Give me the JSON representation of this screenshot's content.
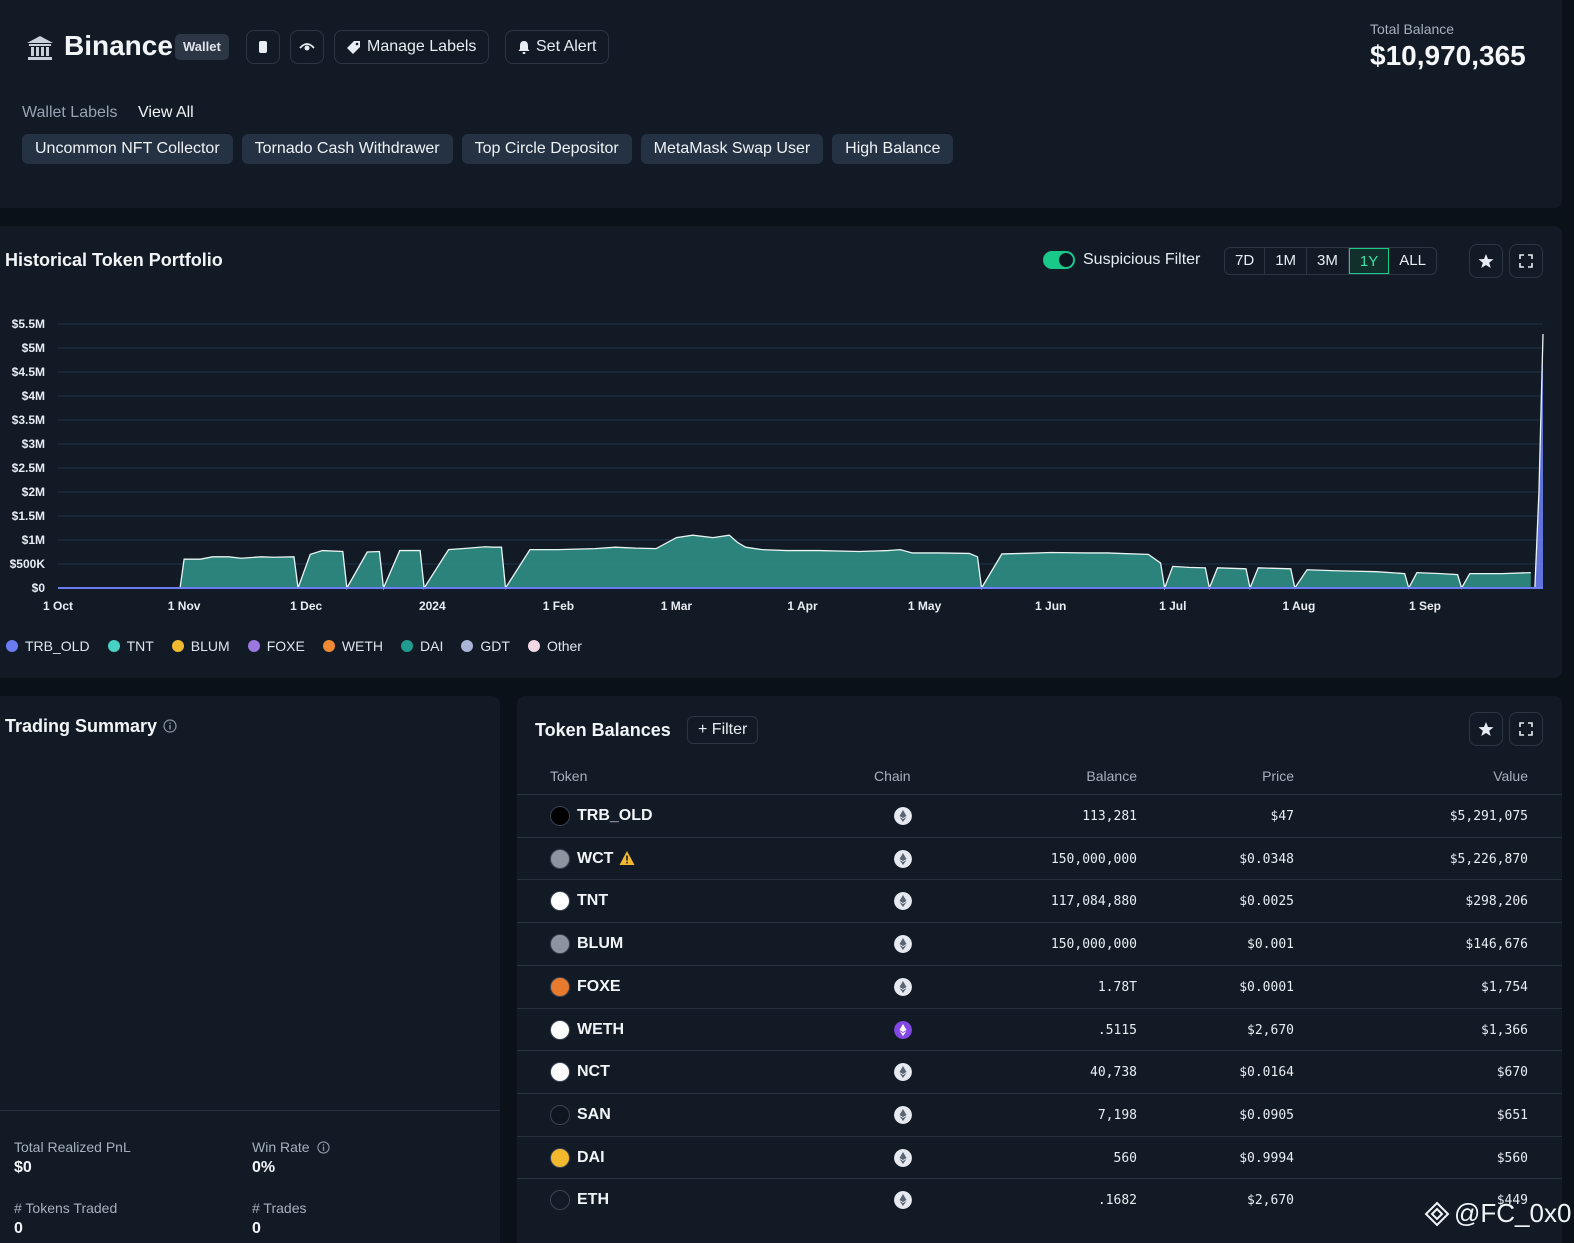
{
  "header": {
    "wallet_name": "Binance",
    "wallet_badge": "Wallet",
    "manage_labels": "Manage Labels",
    "set_alert": "Set Alert",
    "total_balance_label": "Total Balance",
    "total_balance_value": "$10,970,365",
    "wallet_labels_title": "Wallet Labels",
    "view_all": "View All",
    "labels": [
      "Uncommon NFT Collector",
      "Tornado Cash Withdrawer",
      "Top Circle Depositor",
      "MetaMask Swap User",
      "High Balance"
    ]
  },
  "portfolio": {
    "title": "Historical Token Portfolio",
    "suspicious_filter_label": "Suspicious Filter",
    "suspicious_filter_on": true,
    "ranges": [
      "7D",
      "1M",
      "3M",
      "1Y",
      "ALL"
    ],
    "active_range": "1Y",
    "legend": [
      {
        "name": "TRB_OLD",
        "color": "#6b7cf2"
      },
      {
        "name": "TNT",
        "color": "#47d1c2"
      },
      {
        "name": "BLUM",
        "color": "#f2b82e"
      },
      {
        "name": "FOXE",
        "color": "#9a78e0"
      },
      {
        "name": "WETH",
        "color": "#f08a35"
      },
      {
        "name": "DAI",
        "color": "#1f9c8f"
      },
      {
        "name": "GDT",
        "color": "#a9b4d6"
      },
      {
        "name": "Other",
        "color": "#f3d7e4"
      }
    ]
  },
  "chart_data": {
    "type": "area",
    "title": "Historical Token Portfolio",
    "y_ticks": [
      "$5.5M",
      "$5M",
      "$4.5M",
      "$4M",
      "$3.5M",
      "$3M",
      "$2.5M",
      "$2M",
      "$1.5M",
      "$1M",
      "$500K",
      "$0"
    ],
    "ylim": [
      0,
      5500000
    ],
    "x_ticks": [
      "1 Oct",
      "1 Nov",
      "1 Dec",
      "2024",
      "1 Feb",
      "1 Mar",
      "1 Apr",
      "1 May",
      "1 Jun",
      "1 Jul",
      "1 Aug",
      "1 Sep"
    ],
    "grid": true,
    "series": [
      {
        "name": "DAI",
        "color": "#2f8f86",
        "x": [
          "2023-10-01",
          "2023-10-28",
          "2023-10-31",
          "2023-11-01",
          "2023-11-05",
          "2023-11-08",
          "2023-11-12",
          "2023-11-15",
          "2023-11-20",
          "2023-11-23",
          "2023-11-28",
          "2023-11-29",
          "2023-12-02",
          "2023-12-05",
          "2023-12-10",
          "2023-12-11",
          "2023-12-16",
          "2023-12-19",
          "2023-12-20",
          "2023-12-24",
          "2023-12-29",
          "2023-12-30",
          "2024-01-05",
          "2024-01-10",
          "2024-01-14",
          "2024-01-16",
          "2024-01-18",
          "2024-01-19",
          "2024-01-25",
          "2024-02-01",
          "2024-02-10",
          "2024-02-15",
          "2024-02-20",
          "2024-02-25",
          "2024-03-01",
          "2024-03-05",
          "2024-03-10",
          "2024-03-14",
          "2024-03-16",
          "2024-03-18",
          "2024-03-22",
          "2024-03-28",
          "2024-04-05",
          "2024-04-15",
          "2024-04-22",
          "2024-04-25",
          "2024-04-28",
          "2024-05-05",
          "2024-05-12",
          "2024-05-14",
          "2024-05-15",
          "2024-05-20",
          "2024-05-25",
          "2024-06-01",
          "2024-06-10",
          "2024-06-15",
          "2024-06-18",
          "2024-06-25",
          "2024-06-28",
          "2024-06-29",
          "2024-07-01",
          "2024-07-05",
          "2024-07-09",
          "2024-07-10",
          "2024-07-12",
          "2024-07-19",
          "2024-07-20",
          "2024-07-22",
          "2024-07-30",
          "2024-07-31",
          "2024-08-03",
          "2024-08-10",
          "2024-08-20",
          "2024-08-27",
          "2024-08-28",
          "2024-08-30",
          "2024-09-05",
          "2024-09-09",
          "2024-09-10",
          "2024-09-12",
          "2024-09-20",
          "2024-09-27"
        ],
        "y": [
          0,
          0,
          0,
          600000,
          600000,
          650000,
          650000,
          620000,
          650000,
          640000,
          650000,
          0,
          700000,
          780000,
          760000,
          0,
          750000,
          760000,
          0,
          780000,
          780000,
          0,
          800000,
          830000,
          860000,
          850000,
          850000,
          0,
          800000,
          800000,
          820000,
          850000,
          830000,
          820000,
          1050000,
          1100000,
          1050000,
          1100000,
          950000,
          850000,
          800000,
          780000,
          780000,
          760000,
          780000,
          800000,
          730000,
          730000,
          720000,
          650000,
          0,
          710000,
          720000,
          740000,
          730000,
          730000,
          720000,
          700000,
          520000,
          0,
          450000,
          430000,
          420000,
          0,
          420000,
          400000,
          0,
          420000,
          400000,
          0,
          380000,
          360000,
          340000,
          300000,
          0,
          320000,
          300000,
          280000,
          0,
          300000,
          300000,
          320000
        ]
      },
      {
        "name": "TRB_OLD",
        "color": "#6b7cf2",
        "x": [
          "2024-09-27",
          "2024-09-28",
          "2024-09-29",
          "2024-09-30"
        ],
        "y": [
          0,
          0,
          2000000,
          5291075
        ]
      }
    ]
  },
  "trading_summary": {
    "title": "Trading Summary",
    "realized_pnl_label": "Total Realized PnL",
    "realized_pnl_value": "$0",
    "win_rate_label": "Win Rate",
    "win_rate_value": "0%",
    "tokens_traded_label": "# Tokens Traded",
    "tokens_traded_value": "0",
    "trades_label": "# Trades",
    "trades_value": "0"
  },
  "token_balances": {
    "title": "Token Balances",
    "filter_label": "Filter",
    "columns": [
      "Token",
      "Chain",
      "Balance",
      "Price",
      "Value"
    ],
    "rows": [
      {
        "symbol": "TRB_OLD",
        "icon": "trb-icon",
        "chain": "ethereum",
        "balance": "113,281",
        "price": "$47",
        "value": "$5,291,075",
        "warning": false
      },
      {
        "symbol": "WCT",
        "icon": "wct-icon",
        "chain": "ethereum",
        "balance": "150,000,000",
        "price": "$0.0348",
        "value": "$5,226,870",
        "warning": true
      },
      {
        "symbol": "TNT",
        "icon": "tnt-icon",
        "chain": "ethereum",
        "balance": "117,084,880",
        "price": "$0.0025",
        "value": "$298,206",
        "warning": false
      },
      {
        "symbol": "BLUM",
        "icon": "blum-icon",
        "chain": "ethereum",
        "balance": "150,000,000",
        "price": "$0.001",
        "value": "$146,676",
        "warning": false
      },
      {
        "symbol": "FOXE",
        "icon": "foxe-icon",
        "chain": "ethereum",
        "balance": "1.78T",
        "price": "$0.0001",
        "value": "$1,754",
        "warning": false
      },
      {
        "symbol": "WETH",
        "icon": "weth-icon",
        "chain": "polygon",
        "balance": ".5115",
        "price": "$2,670",
        "value": "$1,366",
        "warning": false
      },
      {
        "symbol": "NCT",
        "icon": "nct-icon",
        "chain": "ethereum",
        "balance": "40,738",
        "price": "$0.0164",
        "value": "$670",
        "warning": false
      },
      {
        "symbol": "SAN",
        "icon": "san-icon",
        "chain": "ethereum",
        "balance": "7,198",
        "price": "$0.0905",
        "value": "$651",
        "warning": false
      },
      {
        "symbol": "DAI",
        "icon": "dai-icon",
        "chain": "ethereum",
        "balance": "560",
        "price": "$0.9994",
        "value": "$560",
        "warning": false
      },
      {
        "symbol": "ETH",
        "icon": "eth-icon",
        "chain": "ethereum",
        "balance": ".1682",
        "price": "$2,670",
        "value": "$449",
        "warning": false
      }
    ]
  },
  "watermark": "@FC_0x0"
}
